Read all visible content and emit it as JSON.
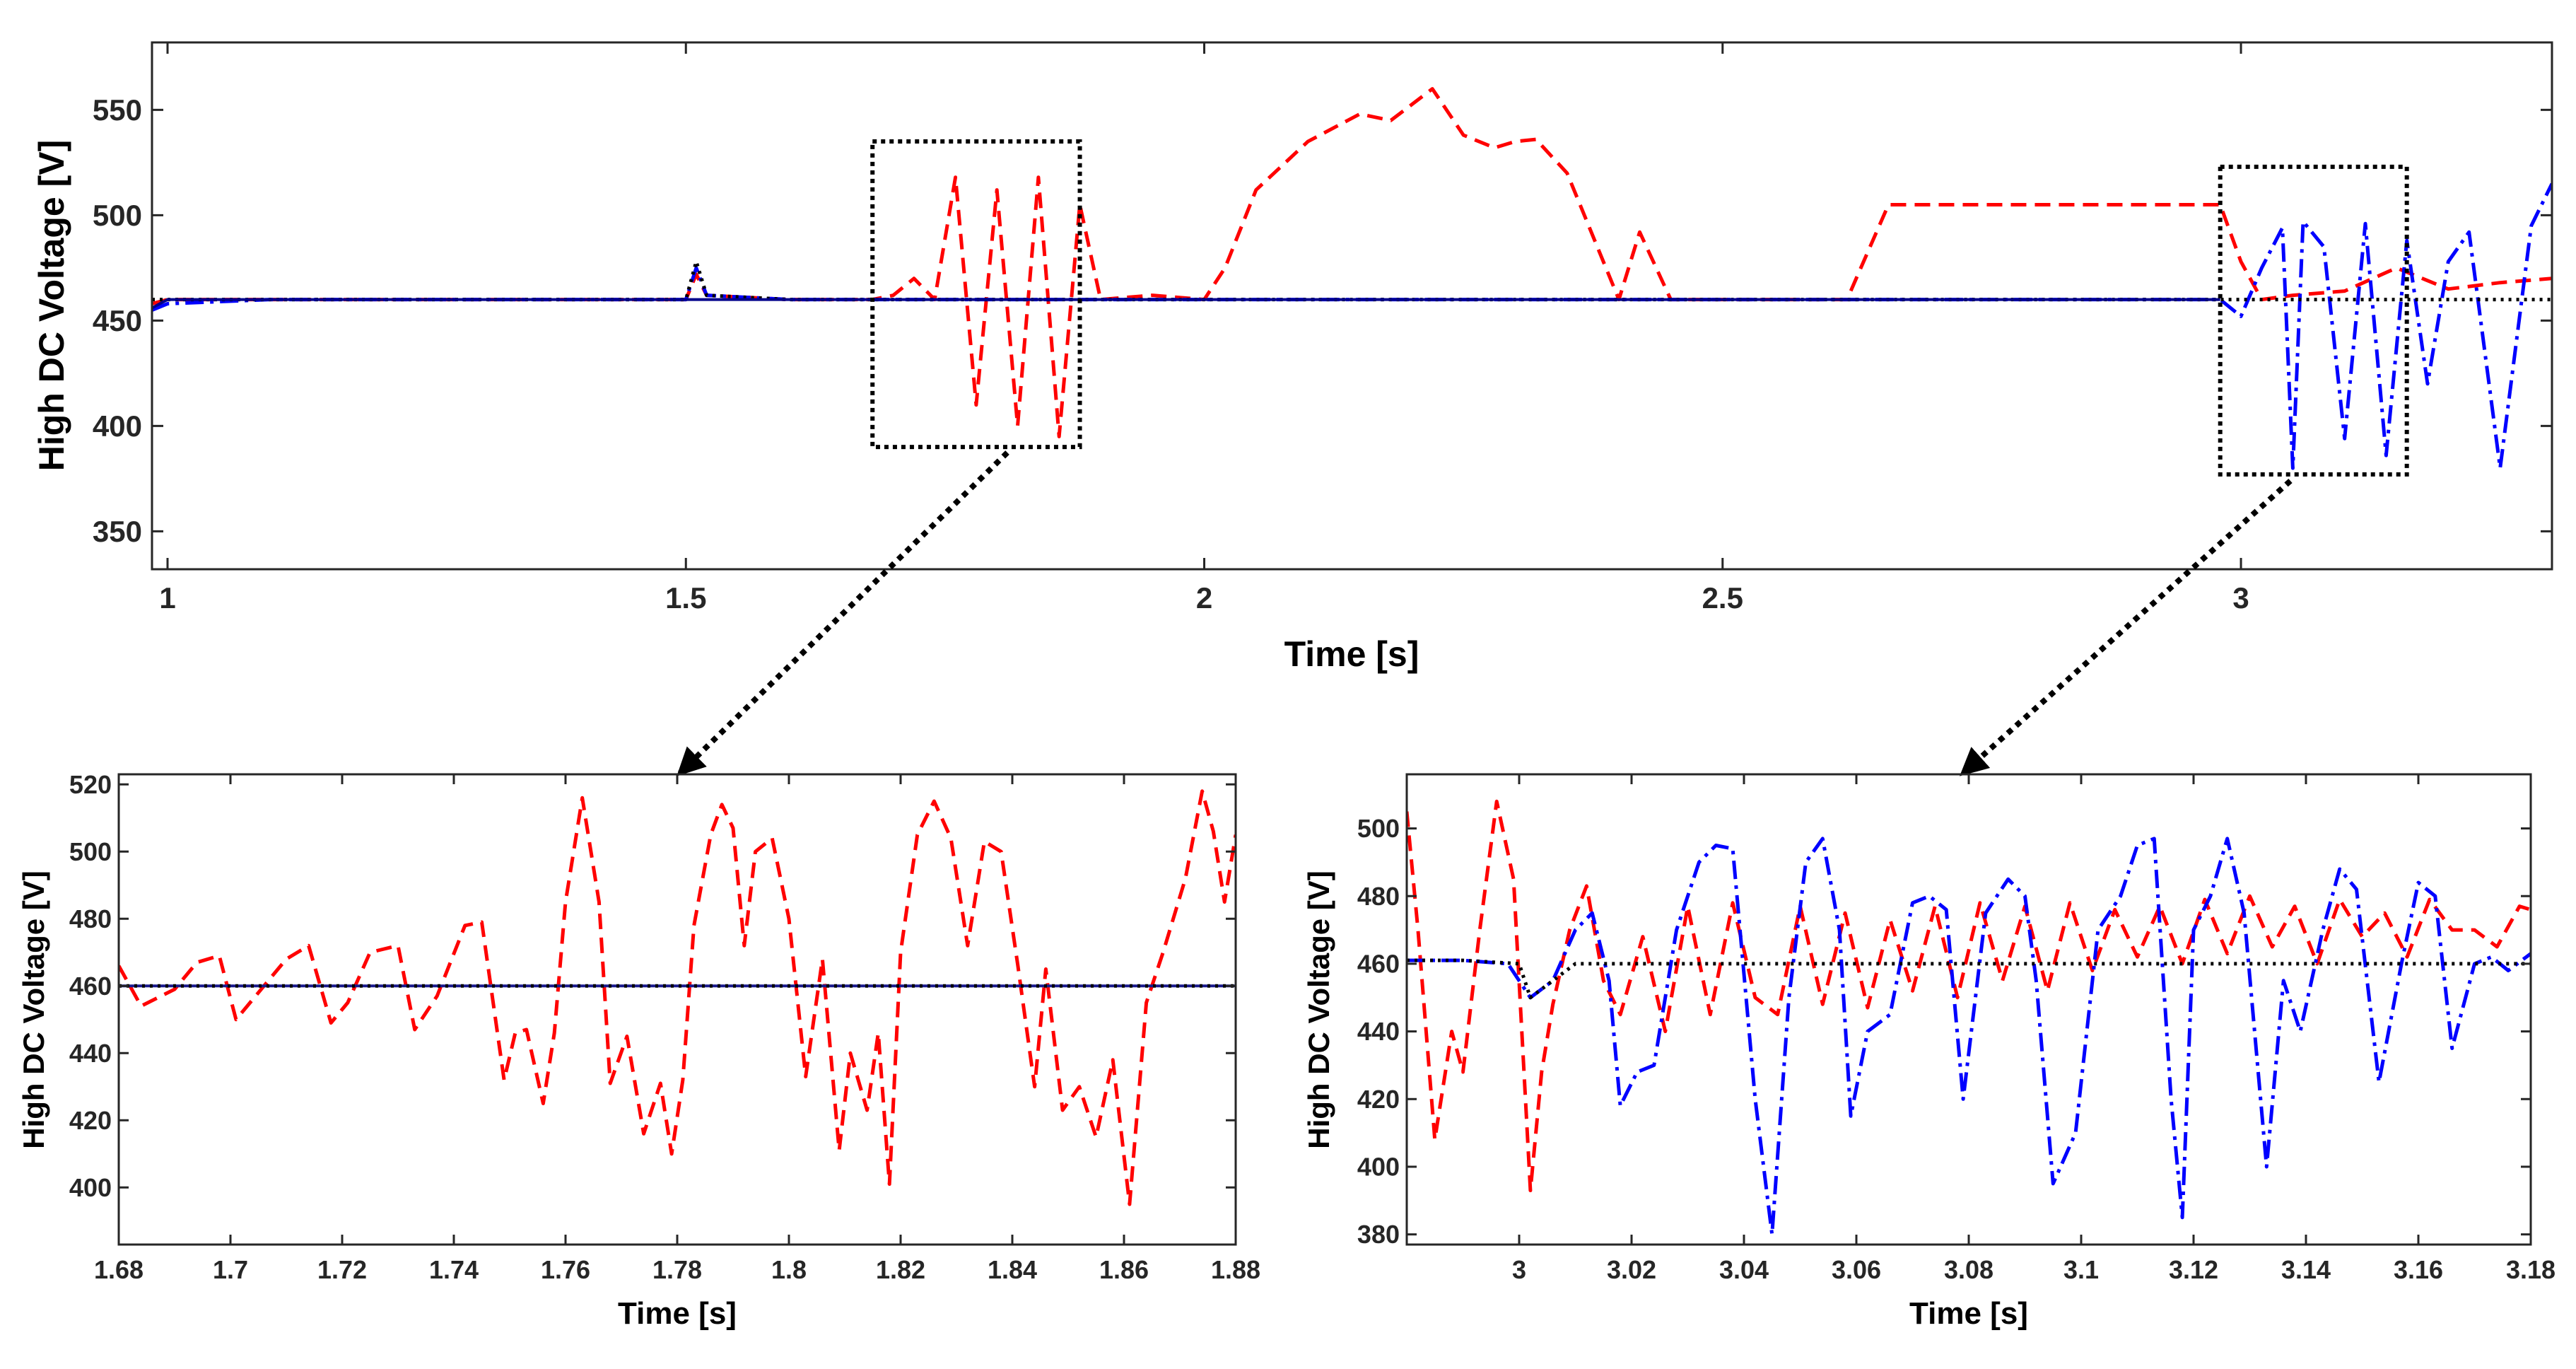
{
  "chart_data": [
    {
      "id": "main",
      "type": "line",
      "title": "",
      "xlabel": "Time [s]",
      "ylabel": "High DC Voltage [V]",
      "xlim": [
        0.985,
        3.3
      ],
      "ylim": [
        332,
        582
      ],
      "xticks": [
        1,
        1.5,
        2,
        2.5,
        3
      ],
      "xtick_labels": [
        "1",
        "1.5",
        "2",
        "2.5",
        "3"
      ],
      "yticks": [
        350,
        400,
        450,
        500,
        550
      ],
      "ytick_labels": [
        "350",
        "400",
        "450",
        "500",
        "550"
      ],
      "grid": false,
      "zoom_boxes": [
        {
          "x0": 1.68,
          "x1": 1.88,
          "y0": 390,
          "y1": 535
        },
        {
          "x0": 2.98,
          "x1": 3.16,
          "y0": 377,
          "y1": 523
        }
      ],
      "series": [
        {
          "name": "red dashed",
          "style": "dashed",
          "color": "#ff0000",
          "x": [
            0.985,
            1.0,
            1.1,
            1.2,
            1.3,
            1.4,
            1.5,
            1.51,
            1.52,
            1.6,
            1.65,
            1.68,
            1.7,
            1.72,
            1.74,
            1.76,
            1.78,
            1.8,
            1.82,
            1.84,
            1.86,
            1.88,
            1.9,
            1.95,
            2.0,
            2.02,
            2.05,
            2.1,
            2.15,
            2.18,
            2.22,
            2.25,
            2.28,
            2.3,
            2.32,
            2.35,
            2.4,
            2.42,
            2.45,
            2.5,
            2.55,
            2.6,
            2.62,
            2.66,
            2.7,
            2.8,
            2.9,
            2.98,
            3.0,
            3.02,
            3.05,
            3.1,
            3.15,
            3.2,
            3.25,
            3.3
          ],
          "y": [
            458,
            460,
            460,
            460,
            460,
            460,
            460,
            472,
            462,
            460,
            460,
            460,
            462,
            470,
            460,
            518,
            410,
            512,
            400,
            518,
            395,
            505,
            460,
            462,
            460,
            475,
            512,
            535,
            548,
            545,
            560,
            538,
            532,
            535,
            536,
            520,
            460,
            492,
            460,
            460,
            460,
            460,
            460,
            505,
            505,
            505,
            505,
            505,
            478,
            460,
            462,
            464,
            475,
            465,
            468,
            470
          ]
        },
        {
          "name": "blue dash-dot",
          "style": "dashdot",
          "color": "#0000ff",
          "x": [
            0.985,
            1.0,
            1.1,
            1.2,
            1.3,
            1.4,
            1.5,
            1.51,
            1.52,
            1.6,
            1.7,
            1.8,
            1.9,
            2.0,
            2.2,
            2.4,
            2.6,
            2.8,
            2.98,
            3.0,
            3.02,
            3.04,
            3.05,
            3.06,
            3.08,
            3.1,
            3.12,
            3.14,
            3.16,
            3.18,
            3.2,
            3.22,
            3.25,
            3.28,
            3.3
          ],
          "y": [
            455,
            458,
            460,
            460,
            460,
            460,
            460,
            475,
            462,
            460,
            460,
            460,
            460,
            460,
            460,
            460,
            460,
            460,
            460,
            452,
            475,
            494,
            380,
            497,
            485,
            394,
            496,
            386,
            488,
            420,
            478,
            492,
            380,
            495,
            515
          ]
        },
        {
          "name": "black dotted",
          "style": "dotted",
          "color": "#000000",
          "x": [
            0.985,
            1.0,
            1.1,
            1.2,
            1.3,
            1.4,
            1.5,
            1.51,
            1.52,
            1.6,
            1.8,
            2.0,
            2.4,
            2.8,
            3.0,
            3.1,
            3.2,
            3.3
          ],
          "y": [
            460,
            460,
            460,
            460,
            460,
            460,
            460,
            478,
            462,
            460,
            460,
            460,
            460,
            460,
            460,
            460,
            460,
            460
          ]
        },
        {
          "name": "navy solid",
          "style": "solid",
          "color": "#00008b",
          "x": [
            0.985,
            1.0,
            1.1,
            1.2,
            1.3,
            1.4,
            1.5,
            1.6,
            1.8,
            2.0,
            2.4,
            2.8,
            2.98
          ],
          "y": [
            456,
            460,
            460,
            460,
            460,
            460,
            460,
            460,
            460,
            460,
            460,
            460,
            460
          ]
        }
      ]
    },
    {
      "id": "zoom-left",
      "type": "line",
      "title": "",
      "xlabel": "Time [s]",
      "ylabel": "High DC Voltage [V]",
      "xlim": [
        1.68,
        1.88
      ],
      "ylim": [
        383,
        523
      ],
      "xticks": [
        1.68,
        1.7,
        1.72,
        1.74,
        1.76,
        1.78,
        1.8,
        1.82,
        1.84,
        1.86,
        1.88
      ],
      "xtick_labels": [
        "1.68",
        "1.7",
        "1.72",
        "1.74",
        "1.76",
        "1.78",
        "1.8",
        "1.82",
        "1.84",
        "1.86",
        "1.88"
      ],
      "yticks": [
        400,
        420,
        440,
        460,
        480,
        500,
        520
      ],
      "ytick_labels": [
        "400",
        "420",
        "440",
        "460",
        "480",
        "500",
        "520"
      ],
      "grid": false,
      "series": [
        {
          "name": "red dashed",
          "style": "dashed",
          "color": "#ff0000",
          "x": [
            1.68,
            1.684,
            1.69,
            1.694,
            1.698,
            1.701,
            1.705,
            1.71,
            1.714,
            1.718,
            1.721,
            1.725,
            1.73,
            1.733,
            1.737,
            1.742,
            1.745,
            1.749,
            1.751,
            1.753,
            1.756,
            1.758,
            1.76,
            1.763,
            1.766,
            1.768,
            1.771,
            1.774,
            1.777,
            1.779,
            1.781,
            1.783,
            1.786,
            1.788,
            1.79,
            1.792,
            1.794,
            1.797,
            1.8,
            1.803,
            1.806,
            1.809,
            1.811,
            1.814,
            1.816,
            1.818,
            1.82,
            1.823,
            1.826,
            1.829,
            1.832,
            1.835,
            1.838,
            1.841,
            1.844,
            1.846,
            1.849,
            1.852,
            1.855,
            1.858,
            1.861,
            1.864,
            1.867,
            1.871,
            1.874,
            1.876,
            1.878,
            1.88
          ],
          "y": [
            466,
            454,
            459,
            467,
            469,
            450,
            458,
            468,
            472,
            449,
            455,
            470,
            472,
            447,
            457,
            478,
            479,
            432,
            446,
            447,
            425,
            446,
            485,
            516,
            485,
            431,
            445,
            416,
            431,
            410,
            432,
            478,
            505,
            514,
            507,
            472,
            500,
            504,
            480,
            433,
            468,
            411,
            440,
            423,
            446,
            401,
            470,
            505,
            515,
            504,
            472,
            503,
            500,
            466,
            430,
            465,
            423,
            430,
            415,
            438,
            395,
            455,
            470,
            492,
            518,
            506,
            485,
            505
          ]
        },
        {
          "name": "navy solid",
          "style": "solid",
          "color": "#1a1a8c",
          "x": [
            1.68,
            1.7,
            1.72,
            1.74,
            1.76,
            1.78,
            1.8,
            1.82,
            1.84,
            1.86,
            1.88
          ],
          "y": [
            460,
            460,
            460,
            460,
            460,
            460,
            460,
            460,
            460,
            460,
            460
          ]
        },
        {
          "name": "black dotted",
          "style": "dotted",
          "color": "#000000",
          "x": [
            1.68,
            1.7,
            1.72,
            1.74,
            1.76,
            1.78,
            1.8,
            1.82,
            1.84,
            1.86,
            1.88
          ],
          "y": [
            460,
            460,
            460,
            460,
            460,
            460,
            460,
            460,
            460,
            460,
            460
          ]
        }
      ]
    },
    {
      "id": "zoom-right",
      "type": "line",
      "title": "",
      "xlabel": "Time [s]",
      "ylabel": "High DC Voltage [V]",
      "xlim": [
        2.98,
        3.18
      ],
      "ylim": [
        377,
        516
      ],
      "xticks": [
        3,
        3.02,
        3.04,
        3.06,
        3.08,
        3.1,
        3.12,
        3.14,
        3.16,
        3.18
      ],
      "xtick_labels": [
        "3",
        "3.02",
        "3.04",
        "3.06",
        "3.08",
        "3.1",
        "3.12",
        "3.14",
        "3.16",
        "3.18"
      ],
      "yticks": [
        380,
        400,
        420,
        440,
        460,
        480,
        500
      ],
      "ytick_labels": [
        "380",
        "400",
        "420",
        "440",
        "460",
        "480",
        "500"
      ],
      "grid": false,
      "series": [
        {
          "name": "red dashed",
          "style": "dashed",
          "color": "#ff0000",
          "x": [
            2.98,
            2.982,
            2.985,
            2.988,
            2.99,
            2.993,
            2.996,
            2.999,
            3.002,
            3.004,
            3.006,
            3.009,
            3.012,
            3.015,
            3.018,
            3.022,
            3.026,
            3.03,
            3.034,
            3.038,
            3.042,
            3.046,
            3.05,
            3.054,
            3.058,
            3.062,
            3.066,
            3.07,
            3.074,
            3.078,
            3.082,
            3.086,
            3.09,
            3.094,
            3.098,
            3.102,
            3.106,
            3.11,
            3.114,
            3.118,
            3.122,
            3.126,
            3.13,
            3.134,
            3.138,
            3.142,
            3.146,
            3.15,
            3.154,
            3.158,
            3.162,
            3.166,
            3.17,
            3.174,
            3.178,
            3.18
          ],
          "y": [
            505,
            470,
            408,
            440,
            428,
            470,
            508,
            485,
            393,
            428,
            448,
            470,
            483,
            455,
            445,
            468,
            440,
            477,
            445,
            478,
            450,
            445,
            477,
            448,
            475,
            447,
            473,
            452,
            477,
            450,
            478,
            455,
            477,
            452,
            478,
            458,
            476,
            462,
            477,
            460,
            479,
            463,
            480,
            465,
            477,
            460,
            479,
            468,
            475,
            462,
            479,
            470,
            470,
            465,
            477,
            476
          ]
        },
        {
          "name": "blue dash-dot",
          "style": "dashdot",
          "color": "#0000ff",
          "x": [
            2.98,
            2.99,
            2.998,
            3.002,
            3.006,
            3.01,
            3.013,
            3.016,
            3.018,
            3.021,
            3.024,
            3.028,
            3.032,
            3.035,
            3.038,
            3.042,
            3.045,
            3.048,
            3.051,
            3.054,
            3.057,
            3.059,
            3.062,
            3.066,
            3.07,
            3.073,
            3.076,
            3.079,
            3.083,
            3.087,
            3.09,
            3.092,
            3.095,
            3.099,
            3.103,
            3.107,
            3.11,
            3.113,
            3.116,
            3.118,
            3.12,
            3.123,
            3.126,
            3.129,
            3.133,
            3.136,
            3.139,
            3.143,
            3.146,
            3.149,
            3.153,
            3.157,
            3.16,
            3.163,
            3.166,
            3.17,
            3.173,
            3.176,
            3.18
          ],
          "y": [
            461,
            461,
            460,
            450,
            455,
            470,
            475,
            455,
            418,
            428,
            430,
            470,
            490,
            495,
            494,
            420,
            380,
            450,
            490,
            497,
            470,
            415,
            440,
            445,
            478,
            480,
            476,
            420,
            475,
            485,
            480,
            455,
            395,
            410,
            470,
            480,
            495,
            497,
            420,
            385,
            470,
            480,
            497,
            475,
            400,
            455,
            440,
            470,
            488,
            482,
            425,
            460,
            484,
            480,
            435,
            460,
            462,
            458,
            463
          ]
        },
        {
          "name": "black dotted",
          "style": "dotted",
          "color": "#000000",
          "x": [
            2.98,
            2.99,
            3.0,
            3.002,
            3.006,
            3.01,
            3.02,
            3.04,
            3.06,
            3.08,
            3.1,
            3.12,
            3.14,
            3.16,
            3.18
          ],
          "y": [
            461,
            461,
            460,
            450,
            455,
            460,
            460,
            460,
            460,
            460,
            460,
            460,
            460,
            460,
            460
          ]
        }
      ]
    }
  ]
}
